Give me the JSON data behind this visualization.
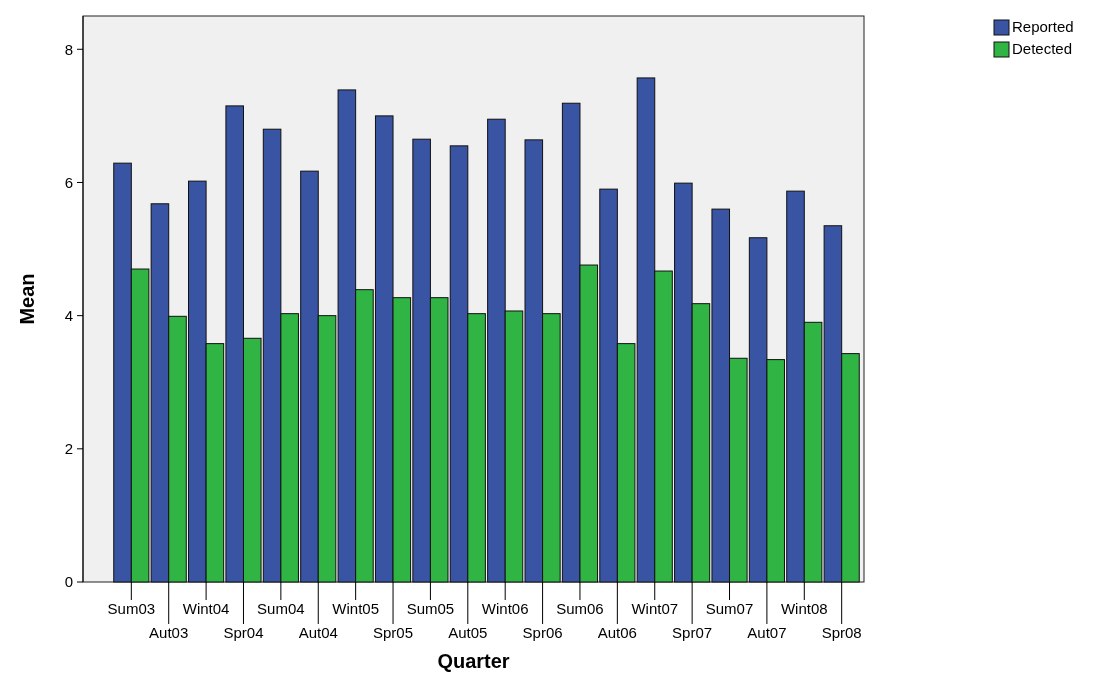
{
  "chart_data": {
    "type": "bar",
    "xlabel": "Quarter",
    "ylabel": "Mean",
    "categories": [
      "Sum03",
      "Aut03",
      "Wint04",
      "Spr04",
      "Sum04",
      "Aut04",
      "Wint05",
      "Spr05",
      "Sum05",
      "Aut05",
      "Wint06",
      "Spr06",
      "Sum06",
      "Aut06",
      "Wint07",
      "Spr07",
      "Sum07",
      "Aut07",
      "Wint08",
      "Spr08"
    ],
    "series": [
      {
        "name": "Reported",
        "color": "#3a54a4",
        "values": [
          6.29,
          5.68,
          6.02,
          7.15,
          6.8,
          6.17,
          7.39,
          7.0,
          6.65,
          6.55,
          6.95,
          6.64,
          7.19,
          5.9,
          7.57,
          5.99,
          5.6,
          5.17,
          5.87,
          5.35
        ]
      },
      {
        "name": "Detected",
        "color": "#30b444",
        "values": [
          4.7,
          3.99,
          3.58,
          3.66,
          4.03,
          4.0,
          4.39,
          4.27,
          4.27,
          4.03,
          4.07,
          4.03,
          4.76,
          3.58,
          4.67,
          4.18,
          3.36,
          3.34,
          3.9,
          3.43
        ]
      }
    ],
    "ylim": [
      0,
      8.5
    ],
    "yticks": [
      0,
      2,
      4,
      6,
      8
    ],
    "grid": false,
    "legend": "top right"
  }
}
